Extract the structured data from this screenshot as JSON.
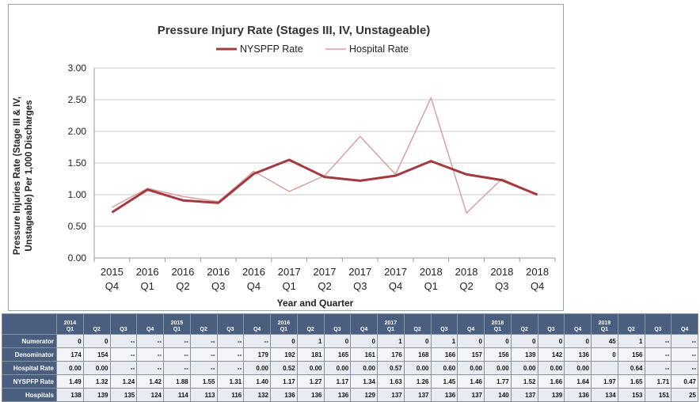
{
  "chart_data": {
    "type": "line",
    "title": "Pressure Injury Rate (Stages III, IV, Unstageable)",
    "xlabel": "Year and Quarter",
    "ylabel": "Pressure Injuries Rate (Stage III & IV, Unstageable) Per 1,000 Discharges",
    "ylim": [
      0,
      3
    ],
    "yticks": [
      "0.00",
      "0.50",
      "1.00",
      "1.50",
      "2.00",
      "2.50",
      "3.00"
    ],
    "grid": true,
    "legend_position": "top",
    "categories": [
      {
        "year": "2015",
        "q": "Q4"
      },
      {
        "year": "2016",
        "q": "Q1"
      },
      {
        "year": "2016",
        "q": "Q2"
      },
      {
        "year": "2016",
        "q": "Q3"
      },
      {
        "year": "2016",
        "q": "Q4"
      },
      {
        "year": "2017",
        "q": "Q1"
      },
      {
        "year": "2017",
        "q": "Q2"
      },
      {
        "year": "2017",
        "q": "Q3"
      },
      {
        "year": "2017",
        "q": "Q4"
      },
      {
        "year": "2018",
        "q": "Q1"
      },
      {
        "year": "2018",
        "q": "Q2"
      },
      {
        "year": "2018",
        "q": "Q3"
      },
      {
        "year": "2018",
        "q": "Q4"
      }
    ],
    "series": [
      {
        "name": "NYSPFP Rate",
        "color": "#a33a3f",
        "values": [
          0.72,
          1.08,
          0.91,
          0.87,
          1.33,
          1.55,
          1.28,
          1.22,
          1.3,
          1.53,
          1.32,
          1.23,
          1.0
        ]
      },
      {
        "name": "Hospital Rate",
        "color": "#d9a0a3",
        "values": [
          0.8,
          1.1,
          0.97,
          0.89,
          1.37,
          1.05,
          1.3,
          1.92,
          1.32,
          2.53,
          0.71,
          1.25,
          1.0
        ]
      }
    ]
  },
  "table": {
    "headers": [
      {
        "year": "2014",
        "q": "Q1"
      },
      {
        "year": "",
        "q": "Q2"
      },
      {
        "year": "",
        "q": "Q3"
      },
      {
        "year": "",
        "q": "Q4"
      },
      {
        "year": "2015",
        "q": "Q1"
      },
      {
        "year": "",
        "q": "Q2"
      },
      {
        "year": "",
        "q": "Q3"
      },
      {
        "year": "",
        "q": "Q4"
      },
      {
        "year": "2016",
        "q": "Q1"
      },
      {
        "year": "",
        "q": "Q2"
      },
      {
        "year": "",
        "q": "Q3"
      },
      {
        "year": "",
        "q": "Q4"
      },
      {
        "year": "2017",
        "q": "Q1"
      },
      {
        "year": "",
        "q": "Q2"
      },
      {
        "year": "",
        "q": "Q3"
      },
      {
        "year": "",
        "q": "Q4"
      },
      {
        "year": "2018",
        "q": "Q1"
      },
      {
        "year": "",
        "q": "Q2"
      },
      {
        "year": "",
        "q": "Q3"
      },
      {
        "year": "",
        "q": "Q4"
      },
      {
        "year": "2019",
        "q": "Q1"
      },
      {
        "year": "",
        "q": "Q2"
      },
      {
        "year": "",
        "q": "Q3"
      },
      {
        "year": "",
        "q": "Q4"
      }
    ],
    "rows": [
      {
        "label": "Numerator",
        "cells": [
          "0",
          "0",
          "--",
          "--",
          "--",
          "--",
          "--",
          "--",
          "0",
          "1",
          "0",
          "0",
          "1",
          "0",
          "1",
          "0",
          "0",
          "0",
          "0",
          "0",
          "45",
          "1",
          "--",
          "--"
        ]
      },
      {
        "label": "Denominator",
        "cells": [
          "174",
          "154",
          "--",
          "--",
          "--",
          "--",
          "--",
          "179",
          "192",
          "181",
          "165",
          "161",
          "176",
          "168",
          "166",
          "157",
          "156",
          "139",
          "142",
          "136",
          "0",
          "156",
          "--",
          "--"
        ]
      },
      {
        "label": "Hospital Rate",
        "cells": [
          "0.00",
          "0.00",
          "--",
          "--",
          "--",
          "--",
          "--",
          "0.00",
          "0.52",
          "0.00",
          "0.00",
          "0.00",
          "0.57",
          "0.00",
          "0.60",
          "0.00",
          "0.00",
          "0.00",
          "0.00",
          "0.00",
          "",
          "0.64",
          "--",
          "--"
        ]
      },
      {
        "label": "NYSPFP Rate",
        "cells": [
          "1.49",
          "1.32",
          "1.24",
          "1.42",
          "1.88",
          "1.55",
          "1.31",
          "1.40",
          "1.17",
          "1.27",
          "1.17",
          "1.34",
          "1.63",
          "1.26",
          "1.45",
          "1.46",
          "1.77",
          "1.52",
          "1.66",
          "1.64",
          "1.97",
          "1.65",
          "1.71",
          "0.47"
        ]
      },
      {
        "label": "Hospitals",
        "cells": [
          "138",
          "139",
          "135",
          "124",
          "114",
          "113",
          "116",
          "132",
          "136",
          "136",
          "136",
          "129",
          "137",
          "137",
          "136",
          "137",
          "140",
          "137",
          "139",
          "136",
          "134",
          "153",
          "151",
          "25"
        ]
      }
    ]
  }
}
